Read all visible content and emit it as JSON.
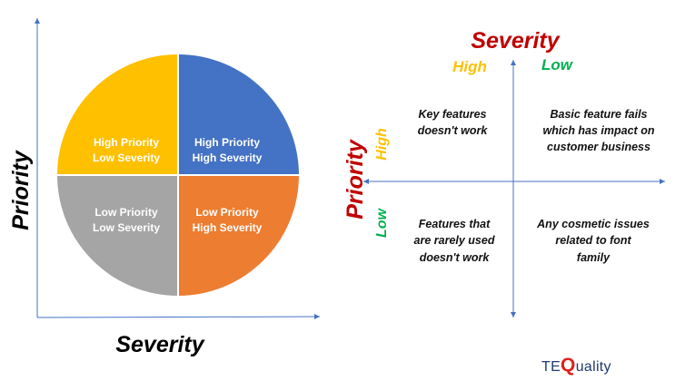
{
  "left_diagram": {
    "y_axis_label": "Priority",
    "x_axis_label": "Severity",
    "quadrants": {
      "top_left": {
        "line1": "High Priority",
        "line2": "Low Severity",
        "color": "#FFC000"
      },
      "top_right": {
        "line1": "High Priority",
        "line2": "High Severity",
        "color": "#4472C4"
      },
      "bottom_left": {
        "line1": "Low Priority",
        "line2": "Low Severity",
        "color": "#A5A5A5"
      },
      "bottom_right": {
        "line1": "Low Priority",
        "line2": "High Severity",
        "color": "#ED7D31"
      }
    }
  },
  "right_matrix": {
    "title": "Severity",
    "col_high": "High",
    "col_low": "Low",
    "row_title": "Priority",
    "row_high": "High",
    "row_low": "Low",
    "cells": {
      "hh": [
        "Key features",
        "doesn't work"
      ],
      "hl": [
        "Basic feature fails",
        "which has impact on",
        "customer business"
      ],
      "lh": [
        "Features that",
        "are rarely used",
        "doesn't work"
      ],
      "ll": [
        "Any cosmetic issues",
        "related to font",
        "family"
      ]
    },
    "colors": {
      "title": "#C00000",
      "high": "#FFC000",
      "low": "#00B050"
    }
  },
  "logo": {
    "prefix": "TE",
    "q": "Q",
    "suffix": "uality"
  }
}
